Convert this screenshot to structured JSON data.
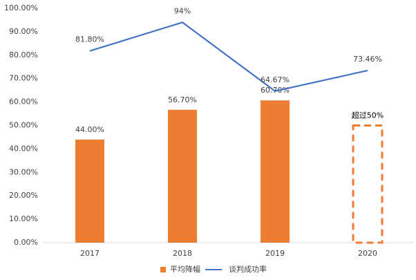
{
  "chart_data": {
    "type": "combo",
    "categories": [
      "2017",
      "2018",
      "2019",
      "2020"
    ],
    "ylim": [
      0,
      100
    ],
    "yticks": [
      {
        "value": 0,
        "label": "0.00%"
      },
      {
        "value": 10,
        "label": "10.00%"
      },
      {
        "value": 20,
        "label": "20.00%"
      },
      {
        "value": 30,
        "label": "30.00%"
      },
      {
        "value": 40,
        "label": "40.00%"
      },
      {
        "value": 50,
        "label": "50.00%"
      },
      {
        "value": 60,
        "label": "60.00%"
      },
      {
        "value": 70,
        "label": "70.00%"
      },
      {
        "value": 80,
        "label": "80.00%"
      },
      {
        "value": 90,
        "label": "90.00%"
      },
      {
        "value": 100,
        "label": "100.00%"
      }
    ],
    "series": [
      {
        "name": "平均降幅",
        "type": "bar",
        "color": "#ed7d31",
        "values": [
          44,
          56.7,
          60.7,
          50
        ],
        "value_labels": [
          "44.00%",
          "56.70%",
          "60.70%",
          "超过50%"
        ],
        "styles": [
          "solid",
          "solid",
          "solid",
          "dashed"
        ]
      },
      {
        "name": "谈判成功率",
        "type": "line",
        "color": "#4472c4",
        "values": [
          81.8,
          94,
          64.67,
          73.46
        ],
        "value_labels": [
          "81.80%",
          "94%",
          "64.67%",
          "73.46%"
        ]
      }
    ],
    "legend": "bottom"
  }
}
